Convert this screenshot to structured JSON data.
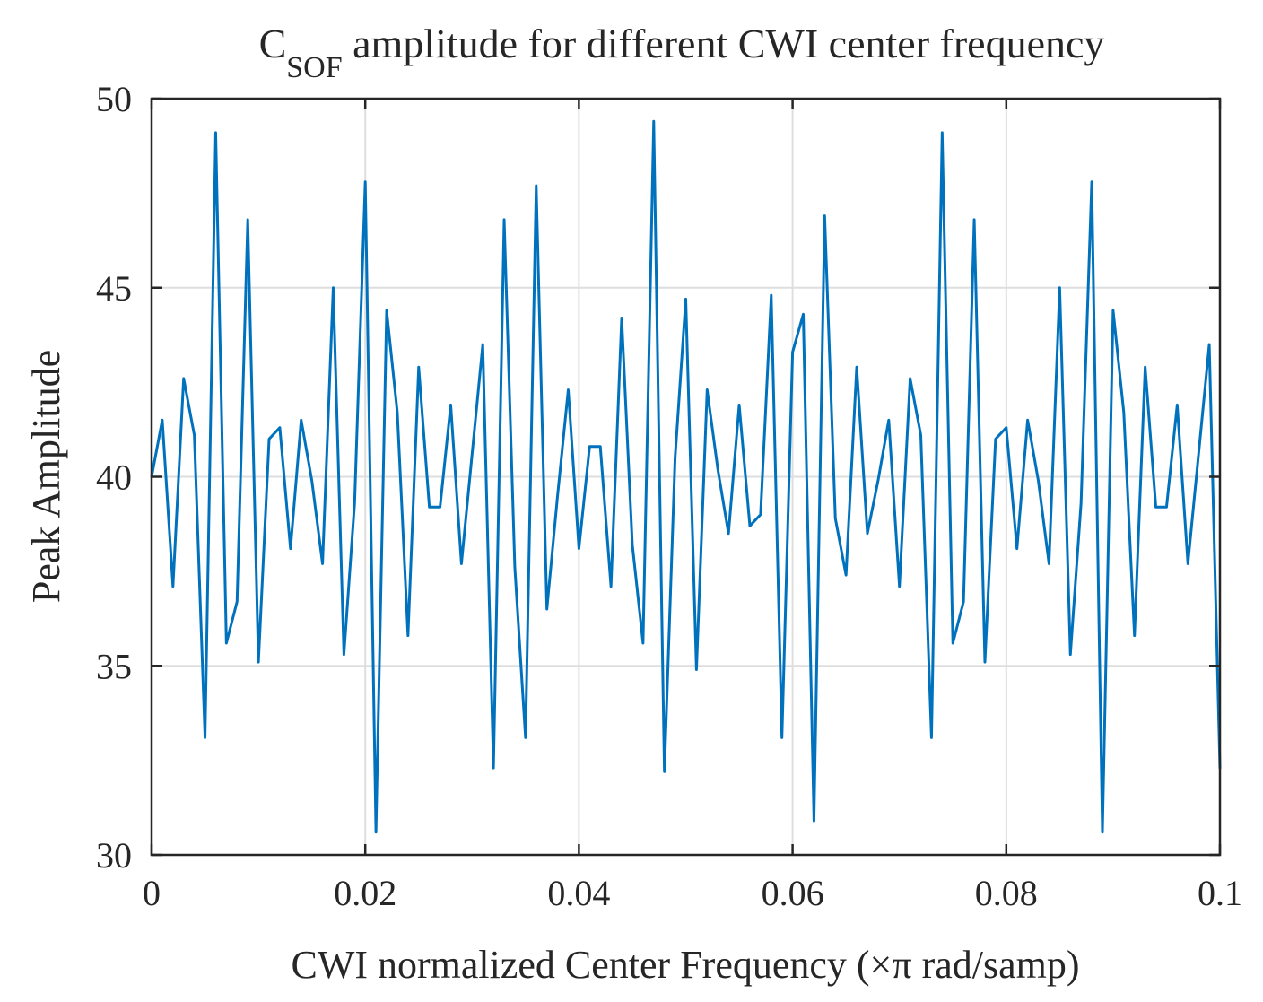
{
  "chart_data": {
    "type": "line",
    "title": {
      "main": "C",
      "subscript": "SOF",
      "rest": " amplitude for different CWI center frequency"
    },
    "xlabel": "CWI normalized Center Frequency (×π rad/samp)",
    "ylabel": "Peak Amplitude",
    "xlim": [
      0,
      0.1
    ],
    "ylim": [
      30,
      50
    ],
    "grid": true,
    "xticks": [
      0,
      0.02,
      0.04,
      0.06,
      0.08,
      0.1
    ],
    "xtick_labels": [
      "0",
      "0.02",
      "0.04",
      "0.06",
      "0.08",
      "0.1"
    ],
    "yticks": [
      30,
      35,
      40,
      45,
      50
    ],
    "ytick_labels": [
      "30",
      "35",
      "40",
      "45",
      "50"
    ],
    "series": [
      {
        "name": "Peak Amplitude",
        "color": "#0072BD",
        "x_start": 0,
        "x_step": 0.001,
        "values": [
          40.0,
          41.5,
          37.1,
          42.6,
          41.1,
          33.1,
          49.1,
          35.6,
          36.7,
          46.8,
          35.1,
          41.0,
          41.3,
          38.1,
          41.5,
          39.9,
          37.7,
          45.0,
          35.3,
          39.3,
          47.8,
          30.6,
          44.4,
          41.7,
          35.8,
          42.9,
          39.2,
          39.2,
          41.9,
          37.7,
          40.6,
          43.5,
          32.3,
          46.8,
          37.6,
          33.1,
          47.7,
          36.5,
          39.5,
          42.3,
          38.1,
          40.8,
          40.8,
          37.1,
          44.2,
          38.2,
          35.6,
          49.4,
          32.2,
          40.5,
          44.7,
          34.9,
          42.3,
          40.2,
          38.5,
          41.9,
          38.7,
          39.0,
          44.8,
          33.1,
          43.3,
          44.3,
          30.9,
          46.9,
          38.9,
          37.4,
          42.9,
          38.5,
          39.9,
          41.5,
          37.1,
          42.6,
          41.1,
          33.1,
          49.1,
          35.6,
          36.7,
          46.8,
          35.1,
          41.0,
          41.3,
          38.1,
          41.5,
          39.9,
          37.7,
          45.0,
          35.3,
          39.3,
          47.8,
          30.6,
          44.4,
          41.7,
          35.8,
          42.9,
          39.2,
          39.2,
          41.9,
          37.7,
          40.6,
          43.5,
          32.3
        ]
      }
    ]
  }
}
